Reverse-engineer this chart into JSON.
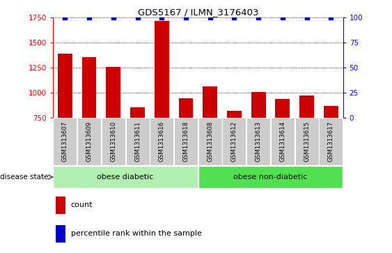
{
  "title": "GDS5167 / ILMN_3176403",
  "samples": [
    "GSM1313607",
    "GSM1313609",
    "GSM1313610",
    "GSM1313611",
    "GSM1313616",
    "GSM1313618",
    "GSM1313608",
    "GSM1313612",
    "GSM1313613",
    "GSM1313614",
    "GSM1313615",
    "GSM1313617"
  ],
  "counts": [
    1390,
    1355,
    1258,
    855,
    1720,
    947,
    1060,
    815,
    1010,
    935,
    970,
    865
  ],
  "percentiles": [
    100,
    100,
    100,
    100,
    100,
    100,
    100,
    100,
    100,
    100,
    100,
    100
  ],
  "ylim_left": [
    750,
    1750
  ],
  "ylim_right": [
    0,
    100
  ],
  "yticks_left": [
    750,
    1000,
    1250,
    1500,
    1750
  ],
  "yticks_right": [
    0,
    25,
    50,
    75,
    100
  ],
  "bar_color": "#cc0000",
  "dot_color": "#0000cc",
  "group1_label": "obese diabetic",
  "group1_color": "#b2f0b2",
  "group2_label": "obese non-diabetic",
  "group2_color": "#50e050",
  "group_label": "disease state",
  "legend_count_label": "count",
  "legend_pct_label": "percentile rank within the sample",
  "tick_area_color": "#cccccc",
  "figsize": [
    5.63,
    3.63
  ],
  "dpi": 100
}
